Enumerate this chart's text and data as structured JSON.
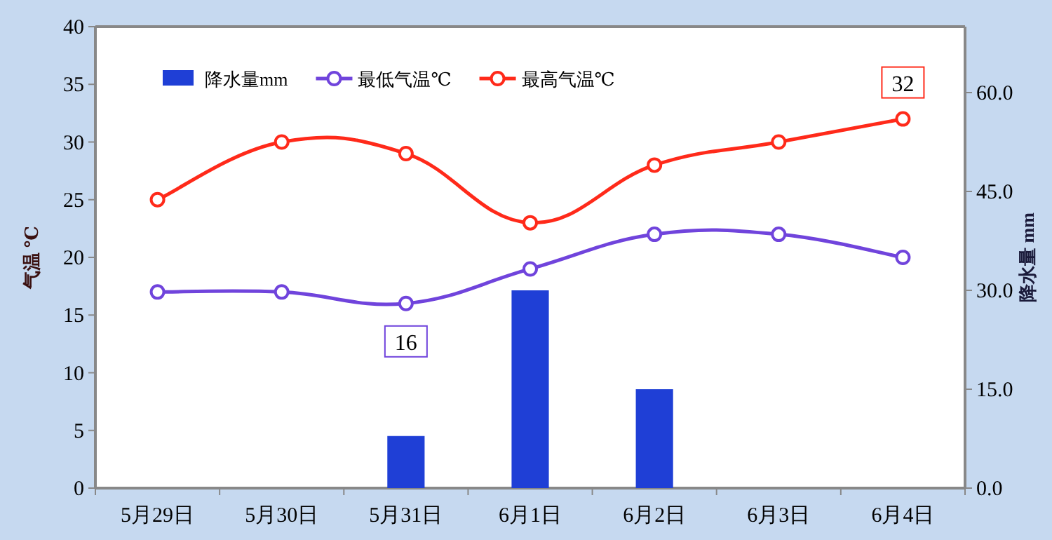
{
  "chart_data": {
    "type": "line",
    "categories": [
      "5月29日",
      "5月30日",
      "5月31日",
      "6月1日",
      "6月2日",
      "6月3日",
      "6月4日"
    ],
    "ylabel": "气温 ℃",
    "y2label": "降水量 mm",
    "ylim": [
      0,
      40
    ],
    "yticks": [
      0,
      5,
      10,
      15,
      20,
      25,
      30,
      35,
      40
    ],
    "y2lim": [
      0,
      70
    ],
    "y2ticks": [
      {
        "value": 0,
        "label": "0.0"
      },
      {
        "value": 15,
        "label": "15.0"
      },
      {
        "value": 30,
        "label": "30.0"
      },
      {
        "value": 45,
        "label": "45.0"
      },
      {
        "value": 60,
        "label": "60.0"
      }
    ],
    "series": [
      {
        "name": "降水量mm",
        "type": "bar",
        "axis": "y2",
        "color": "#1f3fd6",
        "values": [
          0,
          0,
          7.9,
          30,
          15,
          0,
          0
        ]
      },
      {
        "name": "最低气温℃",
        "color": "#7044dc",
        "values": [
          17,
          17,
          16,
          19,
          22,
          22,
          20
        ]
      },
      {
        "name": "最高气温℃",
        "color": "#ff2a1a",
        "values": [
          25,
          30,
          29,
          23,
          28,
          30,
          32
        ]
      }
    ],
    "marker": "circle",
    "legend": "top left",
    "grid": false,
    "annotations": [
      {
        "text": "16",
        "x": "5月31日",
        "y": 16
      },
      {
        "text": "32",
        "x": "6月4日",
        "y": 32
      }
    ]
  }
}
